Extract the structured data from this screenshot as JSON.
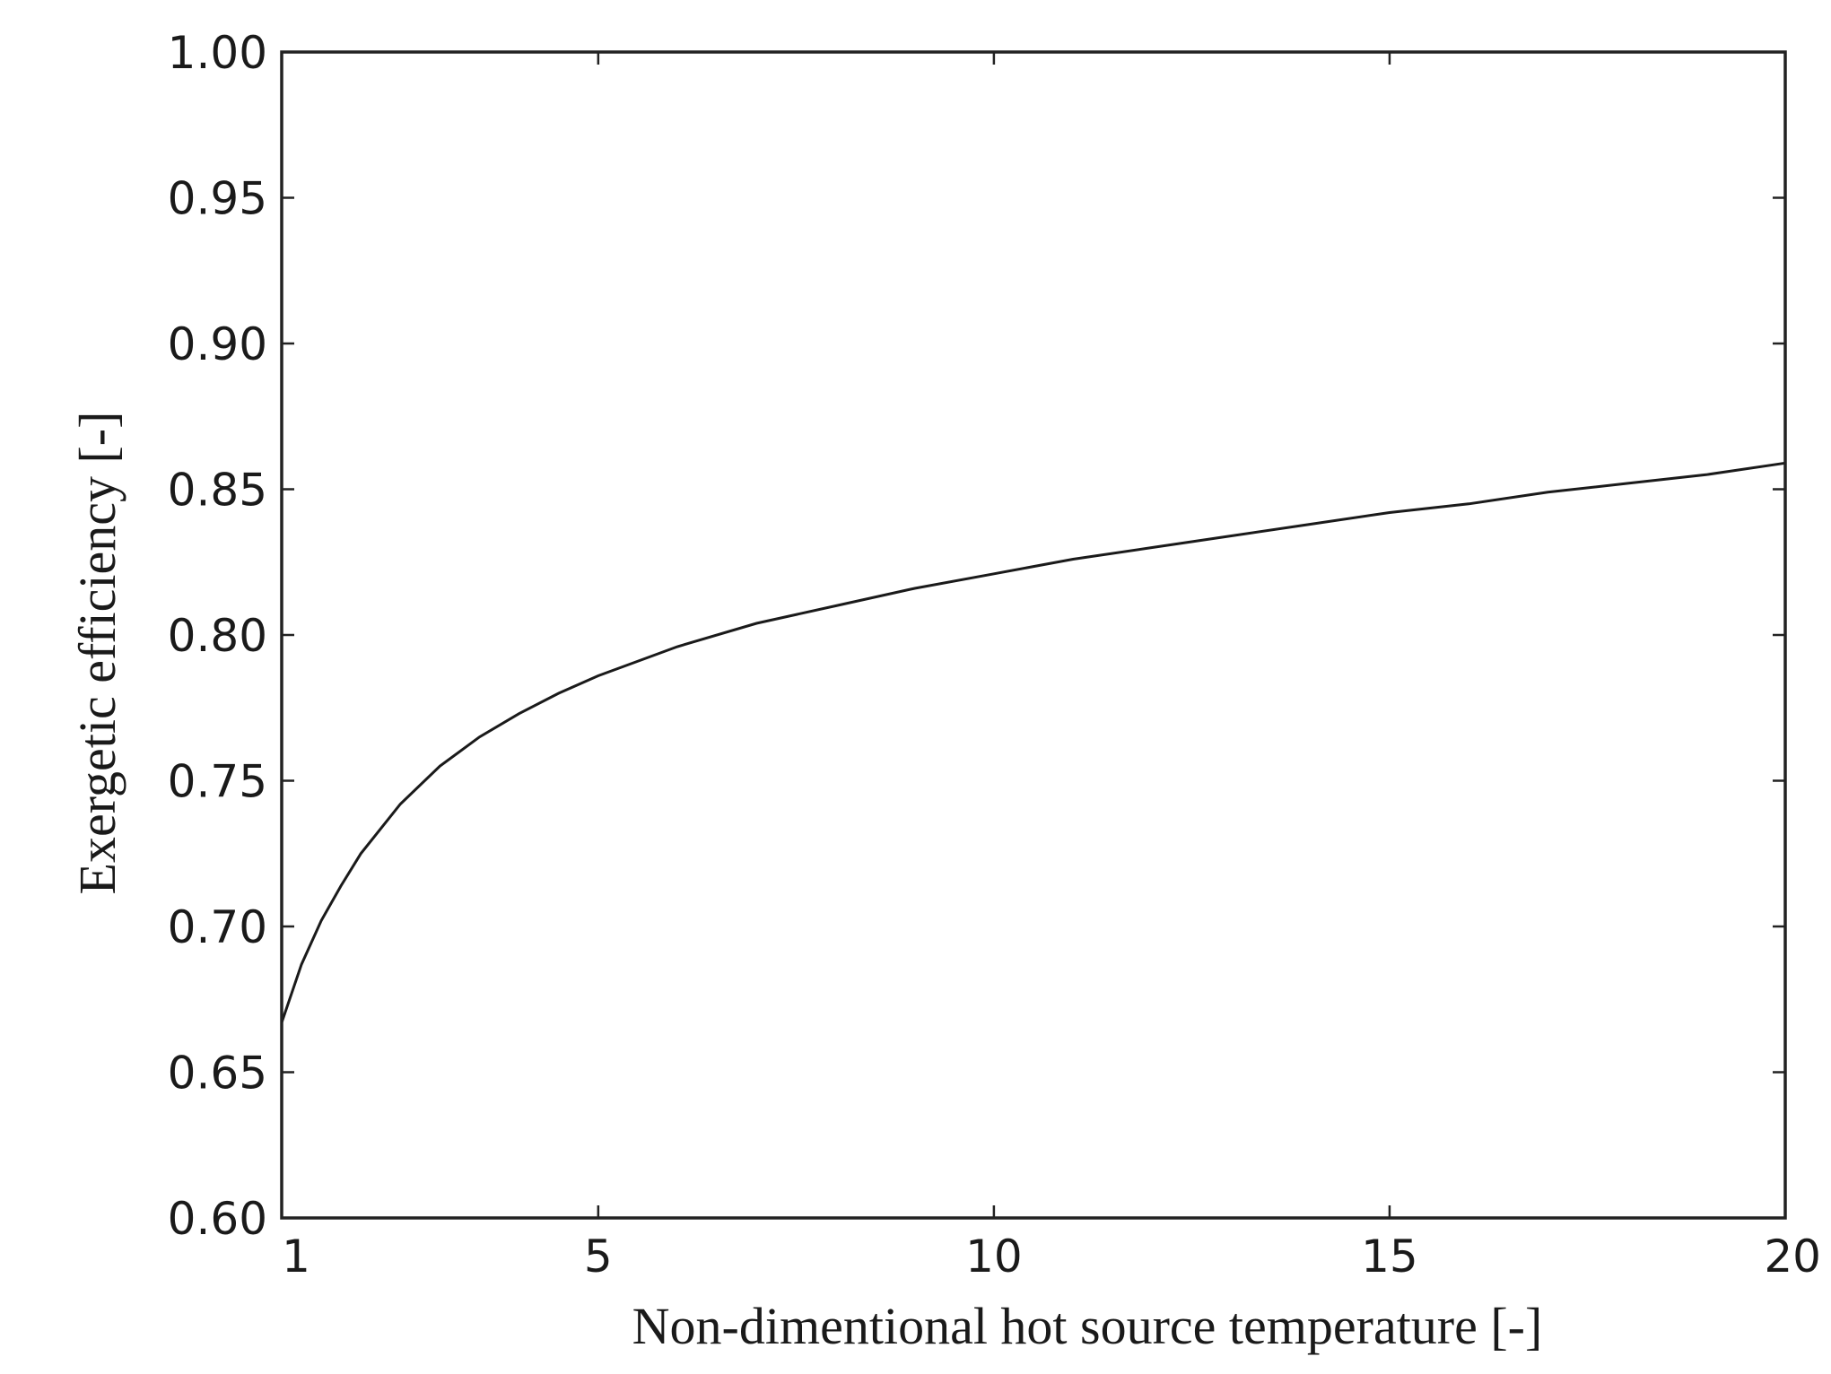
{
  "chart_data": {
    "type": "line",
    "title": "",
    "xlabel": "Non-dimentional hot source temperature [-]",
    "ylabel": "Exergetic efficiency [-]",
    "xlim": [
      1,
      20
    ],
    "ylim": [
      0.6,
      1.0
    ],
    "xticks": [
      1,
      5,
      10,
      15,
      20
    ],
    "xtick_labels": [
      "1",
      "5",
      "10",
      "15",
      "20"
    ],
    "yticks": [
      0.6,
      0.65,
      0.7,
      0.75,
      0.8,
      0.85,
      0.9,
      0.95,
      1.0
    ],
    "ytick_labels": [
      "0.60",
      "0.65",
      "0.70",
      "0.75",
      "0.80",
      "0.85",
      "0.90",
      "0.95",
      "1.00"
    ],
    "grid": false,
    "legend": "none",
    "line_color": "#1a1a1a",
    "series": [
      {
        "x": [
          1,
          1.25,
          1.5,
          1.75,
          2,
          2.5,
          3,
          3.5,
          4,
          4.5,
          5,
          6,
          7,
          8,
          9,
          10,
          11,
          12,
          13,
          14,
          15,
          16,
          17,
          18,
          19,
          20
        ],
        "values": [
          0.667,
          0.687,
          0.702,
          0.714,
          0.725,
          0.742,
          0.755,
          0.765,
          0.773,
          0.78,
          0.786,
          0.796,
          0.804,
          0.81,
          0.816,
          0.821,
          0.826,
          0.83,
          0.834,
          0.838,
          0.842,
          0.845,
          0.849,
          0.852,
          0.855,
          0.859
        ]
      }
    ]
  }
}
